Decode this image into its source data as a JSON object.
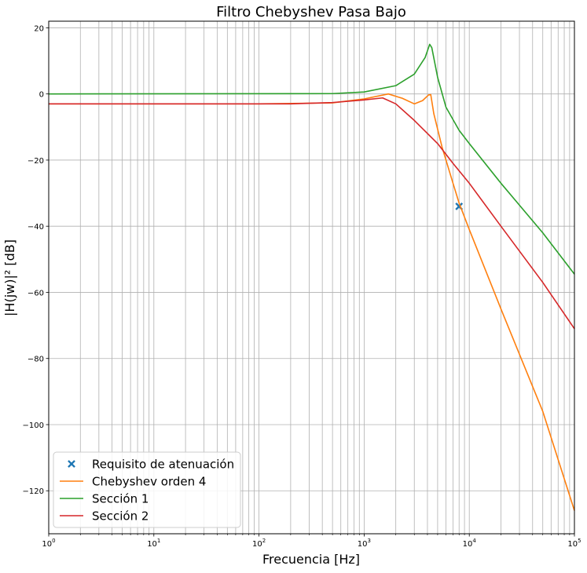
{
  "chart_data": {
    "type": "line",
    "title": "Filtro Chebyshev Pasa Bajo",
    "xlabel": "Frecuencia [Hz]",
    "ylabel": "|H(jw)|² [dB]",
    "xscale": "log",
    "xlim": [
      1,
      100000
    ],
    "ylim": [
      -133,
      22
    ],
    "grid": "major and minor (x), major (y)",
    "legend_position": "lower-left",
    "x_ticks": [
      {
        "value": 1,
        "base": "10",
        "exp": "0"
      },
      {
        "value": 10,
        "base": "10",
        "exp": "1"
      },
      {
        "value": 100,
        "base": "10",
        "exp": "2"
      },
      {
        "value": 1000,
        "base": "10",
        "exp": "3"
      },
      {
        "value": 10000,
        "base": "10",
        "exp": "4"
      },
      {
        "value": 100000,
        "base": "10",
        "exp": "5"
      }
    ],
    "y_ticks": [
      {
        "value": 20,
        "label": "20"
      },
      {
        "value": 0,
        "label": "0"
      },
      {
        "value": -20,
        "label": "−20"
      },
      {
        "value": -40,
        "label": "−40"
      },
      {
        "value": -60,
        "label": "−60"
      },
      {
        "value": -80,
        "label": "−80"
      },
      {
        "value": -100,
        "label": "−100"
      },
      {
        "value": -120,
        "label": "−120"
      }
    ],
    "series": [
      {
        "name": "Requisito de atenuación",
        "kind": "marker",
        "color": "#1f77b4",
        "points": [
          [
            8000,
            -34
          ]
        ]
      },
      {
        "name": "Chebyshev orden 4",
        "kind": "line",
        "color": "#ff7f0e",
        "points": [
          [
            1,
            -3
          ],
          [
            100,
            -3
          ],
          [
            500,
            -2.7
          ],
          [
            1000,
            -1.5
          ],
          [
            1700,
            0
          ],
          [
            2300,
            -1.3
          ],
          [
            3000,
            -3
          ],
          [
            3600,
            -2
          ],
          [
            4100,
            -0.3
          ],
          [
            4300,
            -0.2
          ],
          [
            4600,
            -6
          ],
          [
            5500,
            -16
          ],
          [
            7000,
            -27
          ],
          [
            8000,
            -33
          ],
          [
            10000,
            -41
          ],
          [
            20000,
            -65
          ],
          [
            50000,
            -96
          ],
          [
            100000,
            -126
          ]
        ]
      },
      {
        "name": "Sección 1",
        "kind": "line",
        "color": "#2ca02c",
        "points": [
          [
            1,
            0
          ],
          [
            500,
            0.1
          ],
          [
            1000,
            0.6
          ],
          [
            2000,
            2.5
          ],
          [
            3000,
            6
          ],
          [
            3800,
            11
          ],
          [
            4200,
            15
          ],
          [
            4400,
            14
          ],
          [
            5000,
            5
          ],
          [
            6000,
            -4
          ],
          [
            8000,
            -11
          ],
          [
            10000,
            -15
          ],
          [
            20000,
            -27
          ],
          [
            50000,
            -42
          ],
          [
            100000,
            -54.5
          ]
        ]
      },
      {
        "name": "Sección 2",
        "kind": "line",
        "color": "#d62728",
        "points": [
          [
            1,
            -3
          ],
          [
            200,
            -3
          ],
          [
            500,
            -2.6
          ],
          [
            1000,
            -1.8
          ],
          [
            1500,
            -1.2
          ],
          [
            2000,
            -3
          ],
          [
            3000,
            -8
          ],
          [
            5000,
            -15
          ],
          [
            7000,
            -21
          ],
          [
            10000,
            -27
          ],
          [
            20000,
            -40
          ],
          [
            50000,
            -57
          ],
          [
            100000,
            -71
          ]
        ]
      }
    ]
  }
}
